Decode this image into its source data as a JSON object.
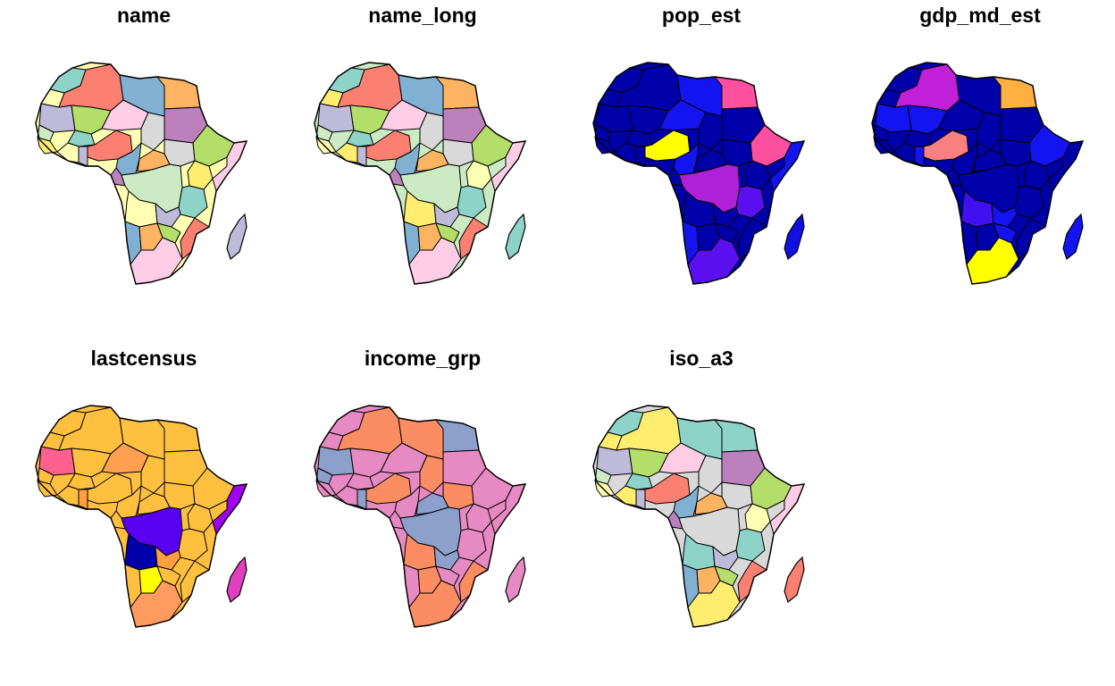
{
  "panels": [
    {
      "title": "name",
      "palette": "pastel",
      "colors": [
        "#8dd3c7",
        "#ffffb3",
        "#bebada",
        "#fb8072",
        "#80b1d3",
        "#fdb462",
        "#b3de69",
        "#fccde5",
        "#d9d9d9",
        "#bc80bd",
        "#ccebc5",
        "#ffed6f"
      ],
      "mainland": "#ffffb3",
      "madagascar": "#bebada"
    },
    {
      "title": "name_long",
      "palette": "pastel",
      "colors": [
        "#8dd3c7",
        "#ffed6f",
        "#bebada",
        "#fb8072",
        "#80b1d3",
        "#fdb462",
        "#b3de69",
        "#fccde5",
        "#d9d9d9",
        "#bc80bd",
        "#ccebc5",
        "#ffffb3"
      ],
      "mainland": "#ccebc5",
      "madagascar": "#8dd3c7"
    },
    {
      "title": "pop_est",
      "palette": "sequential",
      "colors": [
        "#0000aa",
        "#0000aa",
        "#0000aa",
        "#0000aa",
        "#1414f0",
        "#0000aa",
        "#0000aa",
        "#1414f0",
        "#0000aa",
        "#0000aa",
        "#0000aa",
        "#0000aa"
      ],
      "mainland": "#0000aa",
      "madagascar": "#1010e0",
      "highlights": {
        "egypt": "#ff4fa0",
        "nigeria": "#ffff00",
        "drc": "#b020d8",
        "ethiopia": "#ff4fa0",
        "south_africa": "#5a10f0",
        "tanzania": "#5a10f0"
      }
    },
    {
      "title": "gdp_md_est",
      "palette": "sequential",
      "colors": [
        "#0000aa",
        "#0000aa",
        "#1414f0",
        "#0000aa",
        "#0000aa",
        "#0000aa",
        "#1414f0",
        "#0000aa",
        "#0000aa",
        "#0000aa",
        "#0000aa",
        "#0000aa"
      ],
      "mainland": "#0000aa",
      "madagascar": "#1414f0",
      "highlights": {
        "egypt": "#ffb040",
        "algeria": "#c020d8",
        "nigeria": "#f88080",
        "south_africa": "#ffff00",
        "angola": "#4010f0"
      }
    },
    {
      "title": "lastcensus",
      "palette": "sequential",
      "colors": [
        "#ffc040",
        "#ffc040",
        "#ffa040",
        "#ffc040",
        "#ffc040",
        "#ffc040",
        "#ffc040",
        "#ffa050",
        "#ffc040",
        "#ffc040",
        "#ffc040",
        "#ffc040"
      ],
      "mainland": "#ffc040",
      "madagascar": "#e040c0",
      "highlights": {
        "drc": "#5a00f0",
        "angola": "#0000aa",
        "somalia": "#a000f0",
        "botswana": "#ffff00",
        "mauritania": "#ff6090",
        "south_africa": "#ff9a60"
      }
    },
    {
      "title": "income_grp",
      "palette": "set2",
      "colors": [
        "#e78ac3",
        "#e78ac3",
        "#8da0cb",
        "#fc8d62",
        "#e78ac3",
        "#8da0cb",
        "#e78ac3",
        "#e78ac3",
        "#fc8d62",
        "#e78ac3",
        "#8da0cb",
        "#e78ac3"
      ],
      "mainland": "#e78ac3",
      "madagascar": "#e78ac3",
      "highlights": {
        "egypt": "#8da0cb",
        "algeria": "#fc8d62",
        "libya": "#fc8d62",
        "south_africa": "#fc8d62",
        "angola": "#fc8d62",
        "botswana": "#fc8d62"
      }
    },
    {
      "title": "iso_a3",
      "palette": "pastel",
      "colors": [
        "#8dd3c7",
        "#ffed6f",
        "#bebada",
        "#fb8072",
        "#80b1d3",
        "#fdb462",
        "#b3de69",
        "#fccde5",
        "#d9d9d9",
        "#bc80bd",
        "#ccebc5",
        "#ffffb3"
      ],
      "mainland": "#d9d9d9",
      "madagascar": "#fb8072",
      "highlights": {
        "algeria": "#ffed6f",
        "libya": "#8dd3c7",
        "egypt": "#8dd3c7",
        "drc": "#d9d9d9",
        "south_africa": "#ffed6f",
        "angola": "#8dd3c7"
      }
    }
  ]
}
